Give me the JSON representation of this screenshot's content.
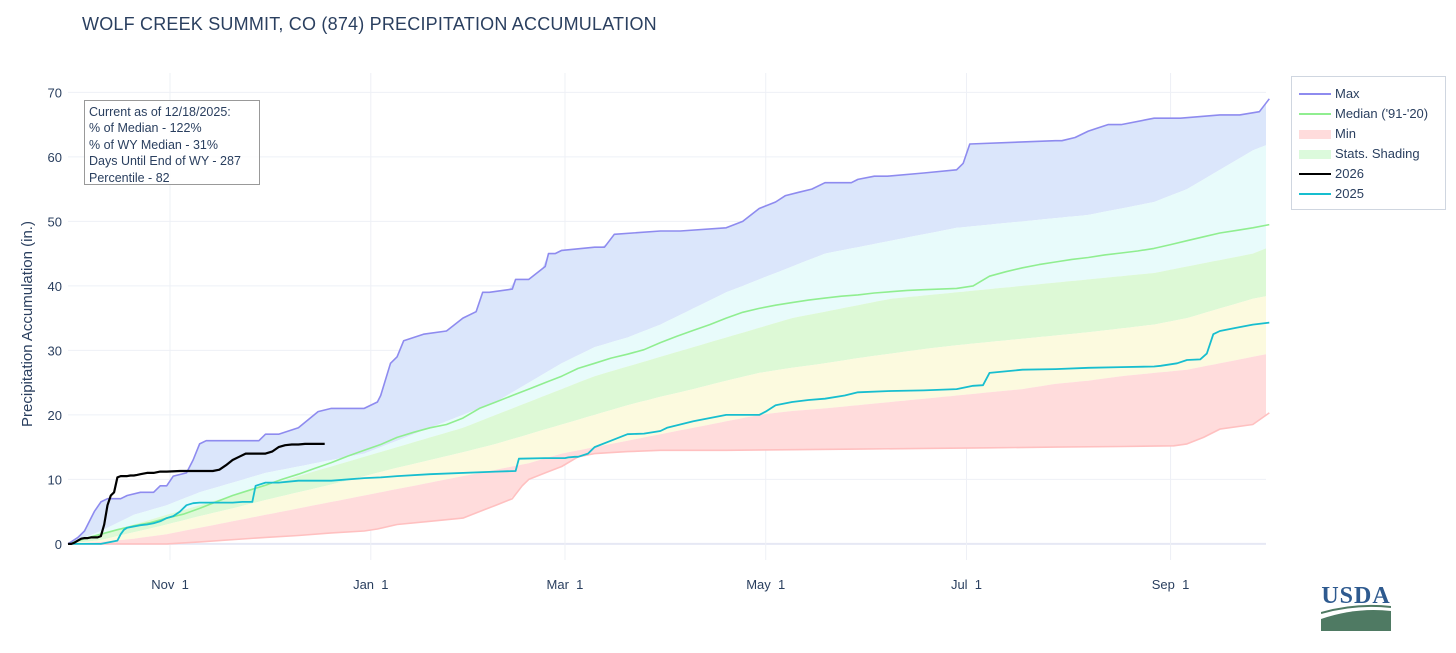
{
  "title": "WOLF CREEK SUMMIT, CO (874) PRECIPITATION ACCUMULATION",
  "info_box": {
    "lines": [
      "Current as of 12/18/2025:",
      "% of Median - 122%",
      "% of WY Median - 31%",
      "Days Until End of WY - 287",
      "Percentile - 82"
    ]
  },
  "logo_text": "USDA",
  "colors": {
    "max": "#8e8bef",
    "median": "#90ee90",
    "min": "#ffc0c0",
    "stats_shading": "#dcfadc",
    "y2026": "#000000",
    "y2025": "#17becf",
    "band_max": "#dbe6fb",
    "band_high": "#e8fbfb",
    "band_med": "#ddf9d6",
    "band_low": "#fcfadf",
    "band_min": "#ffdcdc"
  },
  "chart_data": {
    "type": "line",
    "title": "WOLF CREEK SUMMIT, CO (874) PRECIPITATION ACCUMULATION",
    "xlabel": "",
    "ylabel": "Precipitation Accumulation (in.)",
    "x_unit": "water-year date",
    "xlim": [
      "Oct 1",
      "Sep 30"
    ],
    "ylim": [
      -2.5,
      73
    ],
    "x_ticks": [
      {
        "label": "Nov 1",
        "day": 31
      },
      {
        "label": "Jan 1",
        "day": 92
      },
      {
        "label": "Mar 1",
        "day": 151
      },
      {
        "label": "May 1",
        "day": 212
      },
      {
        "label": "Jul 1",
        "day": 273
      },
      {
        "label": "Sep 1",
        "day": 335
      }
    ],
    "y_ticks": [
      0,
      10,
      20,
      30,
      40,
      50,
      60,
      70
    ],
    "grid": true,
    "legend_position": "top-right (outside plot)",
    "series": [
      {
        "name": "Max",
        "key": "max",
        "x": [
          0,
          3,
          5,
          7,
          8,
          10,
          12,
          14,
          16,
          18,
          22,
          26,
          28,
          30,
          32,
          36,
          38,
          40,
          42,
          52,
          58,
          60,
          64,
          70,
          76,
          80,
          90,
          94,
          95,
          98,
          100,
          102,
          105,
          108,
          115,
          120,
          124,
          126,
          128,
          135,
          136,
          140,
          145,
          146,
          148,
          150,
          160,
          163,
          166,
          180,
          186,
          200,
          205,
          210,
          215,
          218,
          222,
          226,
          230,
          238,
          240,
          245,
          249,
          260,
          270,
          272,
          274,
          300,
          302,
          306,
          310,
          316,
          320,
          330,
          338,
          350,
          356,
          362,
          365
        ],
        "y": [
          0,
          1,
          2,
          4,
          5,
          6.5,
          7,
          7,
          7,
          7.5,
          8,
          8,
          9,
          9,
          10.5,
          11,
          13,
          15.5,
          16,
          16,
          16,
          17,
          17,
          18,
          20.5,
          21,
          21,
          22,
          23,
          28,
          29,
          31.5,
          32,
          32.5,
          33,
          35,
          36,
          39,
          39,
          39.5,
          41,
          41,
          43,
          45,
          45,
          45.5,
          46,
          46,
          48,
          48.5,
          48.5,
          49,
          50,
          52,
          53,
          54,
          54.5,
          55,
          56,
          56,
          56.5,
          57,
          57,
          57.5,
          58,
          59,
          62,
          62.5,
          62.5,
          63,
          64,
          65,
          65,
          66,
          66,
          66.5,
          66.5,
          67,
          69
        ]
      },
      {
        "name": "Median ('91-'20)",
        "key": "median",
        "x": [
          0,
          5,
          10,
          15,
          20,
          25,
          30,
          35,
          40,
          45,
          50,
          55,
          60,
          65,
          70,
          75,
          80,
          85,
          90,
          95,
          100,
          105,
          110,
          115,
          120,
          125,
          130,
          135,
          140,
          145,
          150,
          155,
          160,
          165,
          170,
          175,
          180,
          185,
          190,
          195,
          200,
          205,
          210,
          215,
          220,
          225,
          230,
          235,
          240,
          245,
          250,
          255,
          260,
          265,
          270,
          275,
          280,
          285,
          290,
          295,
          300,
          305,
          310,
          315,
          320,
          325,
          330,
          335,
          340,
          345,
          350,
          355,
          360,
          365
        ],
        "y": [
          0,
          0.8,
          1.5,
          2.2,
          2.8,
          3.3,
          4,
          4.6,
          5.5,
          6.5,
          7.5,
          8.3,
          9.1,
          10,
          10.8,
          11.7,
          12.6,
          13.6,
          14.5,
          15.4,
          16.5,
          17.3,
          18,
          18.5,
          19.5,
          21,
          22,
          23,
          24,
          25,
          26,
          27.2,
          28,
          28.8,
          29.4,
          30.1,
          31.2,
          32.2,
          33.1,
          34,
          35,
          35.9,
          36.5,
          37,
          37.4,
          37.8,
          38.1,
          38.4,
          38.6,
          38.9,
          39.1,
          39.3,
          39.4,
          39.5,
          39.6,
          40,
          41.5,
          42.2,
          42.8,
          43.3,
          43.7,
          44.1,
          44.4,
          44.8,
          45.1,
          45.4,
          45.8,
          46.4,
          47,
          47.6,
          48.2,
          48.6,
          49,
          49.5
        ]
      },
      {
        "name": "Min",
        "key": "min",
        "x": [
          0,
          30,
          40,
          60,
          70,
          80,
          90,
          94,
          100,
          110,
          120,
          125,
          130,
          135,
          138,
          140,
          145,
          150,
          155,
          160,
          170,
          180,
          200,
          220,
          240,
          260,
          280,
          300,
          320,
          336,
          340,
          345,
          350,
          360,
          365
        ],
        "y": [
          0,
          0,
          0.3,
          1,
          1.3,
          1.7,
          2,
          2.3,
          3,
          3.5,
          4,
          5,
          6,
          7,
          9,
          10,
          11,
          12,
          13.5,
          14,
          14.3,
          14.5,
          14.5,
          14.6,
          14.7,
          14.8,
          14.9,
          15,
          15.1,
          15.2,
          15.5,
          16.5,
          17.8,
          18.5,
          20.3
        ]
      },
      {
        "name": "Stats. Shading",
        "key": "stats_shading",
        "x": [],
        "y": []
      },
      {
        "name": "2026",
        "key": "y2026",
        "x": [
          0,
          1,
          2,
          3,
          4,
          5,
          6,
          7,
          8,
          9,
          10,
          11,
          12,
          13,
          14,
          15,
          16,
          17,
          18,
          19,
          20,
          21,
          22,
          24,
          26,
          28,
          30,
          34,
          38,
          42,
          44,
          46,
          48,
          50,
          52,
          54,
          56,
          58,
          60,
          62,
          64,
          66,
          68,
          70,
          72,
          74,
          76,
          78
        ],
        "y": [
          0,
          0,
          0.2,
          0.5,
          0.8,
          0.9,
          0.9,
          1,
          1,
          1,
          1.2,
          3,
          6,
          7.5,
          8,
          10.3,
          10.5,
          10.5,
          10.5,
          10.6,
          10.6,
          10.7,
          10.8,
          11,
          11,
          11.2,
          11.2,
          11.3,
          11.3,
          11.3,
          11.3,
          11.5,
          12.2,
          13,
          13.5,
          14,
          14,
          14,
          14,
          14.3,
          15,
          15.3,
          15.4,
          15.4,
          15.5,
          15.5,
          15.5,
          15.5
        ]
      },
      {
        "name": "2025",
        "key": "y2025",
        "x": [
          0,
          10,
          15,
          16,
          17,
          18,
          19,
          20,
          22,
          24,
          26,
          28,
          30,
          32,
          34,
          36,
          38,
          40,
          42,
          46,
          50,
          53,
          56,
          57,
          60,
          64,
          70,
          75,
          80,
          90,
          95,
          100,
          110,
          130,
          136,
          137,
          145,
          150,
          151,
          152,
          154,
          155,
          158,
          160,
          165,
          170,
          175,
          180,
          182,
          186,
          190,
          200,
          205,
          210,
          212,
          215,
          220,
          225,
          230,
          236,
          240,
          250,
          260,
          270,
          275,
          278,
          280,
          290,
          300,
          310,
          320,
          330,
          332,
          337,
          340,
          344,
          346,
          348,
          350,
          355,
          360,
          365
        ],
        "y": [
          0,
          0,
          0.5,
          1.5,
          2.2,
          2.5,
          2.6,
          2.7,
          2.9,
          3,
          3.2,
          3.5,
          4,
          4.3,
          5,
          6,
          6.3,
          6.4,
          6.4,
          6.4,
          6.4,
          6.5,
          6.5,
          9,
          9.5,
          9.5,
          9.8,
          9.8,
          9.8,
          10.2,
          10.3,
          10.5,
          10.8,
          11.2,
          11.3,
          13.2,
          13.3,
          13.3,
          13.3,
          13.4,
          13.5,
          13.5,
          14,
          15,
          16,
          17,
          17.1,
          17.5,
          18,
          18.5,
          19,
          20,
          20,
          20,
          20.5,
          21.5,
          22,
          22.3,
          22.5,
          23,
          23.5,
          23.7,
          23.8,
          24,
          24.5,
          24.6,
          26.5,
          27,
          27.1,
          27.3,
          27.4,
          27.5,
          27.6,
          28,
          28.5,
          28.6,
          29.5,
          32.5,
          33,
          33.5,
          34,
          34.3
        ]
      }
    ],
    "shading_bands": {
      "x": [
        0,
        10,
        20,
        30,
        40,
        50,
        60,
        70,
        80,
        90,
        100,
        110,
        120,
        130,
        140,
        150,
        160,
        170,
        180,
        190,
        200,
        210,
        220,
        230,
        240,
        250,
        260,
        270,
        280,
        290,
        300,
        310,
        320,
        330,
        340,
        350,
        360,
        365
      ],
      "p90": [
        0,
        2,
        4.5,
        6,
        8,
        9.5,
        11,
        12,
        13,
        14,
        16,
        18,
        20,
        22,
        25,
        28,
        30.5,
        32,
        34,
        36.5,
        39,
        41,
        43,
        45,
        46,
        47,
        48,
        49,
        49.5,
        50,
        50.5,
        51,
        52,
        53,
        55,
        58,
        61,
        62
      ],
      "p70": [
        0,
        1.5,
        3,
        4.5,
        6,
        7.5,
        9,
        10.5,
        12,
        13.5,
        15,
        16.5,
        18,
        20,
        22,
        24,
        26,
        27.5,
        29,
        30.5,
        32,
        33.5,
        35,
        36,
        37,
        38,
        38.5,
        39,
        39.5,
        40,
        40.5,
        41,
        41.5,
        42,
        43,
        44,
        45,
        46
      ],
      "p50": [
        0,
        1,
        2.5,
        4,
        5.5,
        7,
        8.5,
        10,
        11.2,
        12.5,
        14,
        15.5,
        17,
        18.5,
        20,
        22,
        24,
        25.5,
        27,
        28.5,
        30,
        31.3,
        32.5,
        33.2,
        34,
        34.8,
        35.5,
        36,
        36.5,
        37,
        37.4,
        37.8,
        38.2,
        38.6,
        39,
        39.8,
        40.5,
        41
      ],
      "p30": [
        0,
        0.6,
        1.8,
        3,
        4.3,
        5.5,
        6.8,
        8,
        9.2,
        10.5,
        11.8,
        13,
        14.2,
        15.5,
        17,
        18.5,
        20,
        21.5,
        22.8,
        24,
        25.3,
        26.5,
        27.3,
        28,
        28.8,
        29.5,
        30.2,
        30.8,
        31.3,
        31.8,
        32.3,
        32.8,
        33.4,
        34,
        35,
        36.5,
        38,
        38.5
      ],
      "p10": [
        0,
        0.3,
        0.8,
        1.5,
        2.5,
        3.5,
        4.5,
        5.5,
        6.5,
        7.5,
        8.5,
        9.5,
        10.5,
        11.5,
        12.5,
        14,
        15,
        16,
        17,
        18,
        19,
        20,
        20.6,
        21,
        21.5,
        22,
        22.5,
        23,
        23.5,
        24,
        24.8,
        25.3,
        26,
        26.5,
        27,
        28,
        29,
        29.5
      ]
    }
  }
}
